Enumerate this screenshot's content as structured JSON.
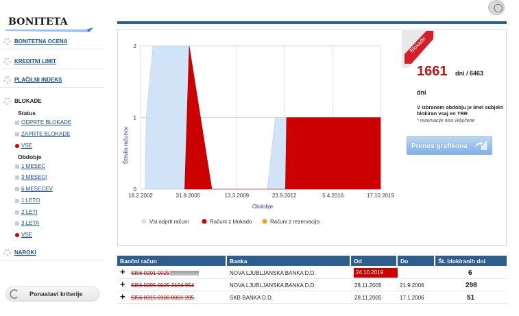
{
  "brand": {
    "title": "BONITETA"
  },
  "top": {
    "help_icon": "lightbulb-icon"
  },
  "sidebar": {
    "items": [
      {
        "label": "BONITETNA OCENA"
      },
      {
        "label": "KREDITNI LIMIT"
      },
      {
        "label": "PLAČILNI INDEKS"
      },
      {
        "label": "BLOKADE"
      },
      {
        "label": "NAROKI"
      }
    ],
    "status_heading": "Status",
    "status_options": [
      {
        "label": "ODPRTE BLOKADE"
      },
      {
        "label": "ZAPRTE BLOKADE"
      },
      {
        "label": "VSE"
      }
    ],
    "period_heading": "Obdobje",
    "period_options": [
      {
        "label": "1 MESEC"
      },
      {
        "label": "3 MESECI"
      },
      {
        "label": "6 MESECEV"
      },
      {
        "label": "1 LETO"
      },
      {
        "label": "2 LETI"
      },
      {
        "label": "3 LETA"
      },
      {
        "label": "VSE"
      }
    ],
    "reset_label": "Ponastavi kriterije"
  },
  "chart_data": {
    "type": "area",
    "xlabel": "Obdobje",
    "ylabel": "Število računov",
    "x_ticks": [
      "18.2.2002",
      "31.8.2005",
      "13.3.2009",
      "23.9.2012",
      "5.4.2016",
      "17.10.2019"
    ],
    "y_ticks": [
      "0",
      "1",
      "2"
    ],
    "ylim": [
      0,
      2
    ],
    "grid": true,
    "legend_position": "bottom",
    "legend": [
      {
        "name": "Vsi odprti računi",
        "color": "#cfe2f7"
      },
      {
        "name": "Računi z blokado",
        "color": "#cc0000"
      },
      {
        "name": "Računi z rezervacijo",
        "color": "#f0a020"
      }
    ],
    "series": [
      {
        "name": "Vsi odprti računi",
        "color": "#cfe2f7",
        "points": [
          [
            "2002-06",
            0
          ],
          [
            "2002-07",
            1
          ],
          [
            "2003-01",
            2
          ],
          [
            "2005-09",
            2
          ],
          [
            "2005-12",
            1
          ],
          [
            "2005-12",
            0
          ],
          [
            "2011-06",
            0
          ],
          [
            "2012-01",
            1
          ],
          [
            "2019-10",
            1
          ]
        ]
      },
      {
        "name": "Računi z blokado",
        "color": "#cc0000",
        "points": [
          [
            "2005-05",
            0
          ],
          [
            "2005-09",
            2
          ],
          [
            "2007-05",
            0
          ],
          [
            "2012-10",
            0
          ],
          [
            "2012-11",
            1
          ],
          [
            "2019-10",
            1
          ]
        ]
      }
    ]
  },
  "stats": {
    "ribbon_label": "Blokade",
    "blocked_days": "1661",
    "suffix": "dni / 6463",
    "dni": "dni",
    "description": "V izbranem obdobju je imel subjekt blokiran vsaj en TRR",
    "note": "* rezervacije niso vključene",
    "transfer_button": "Prenos grafikona"
  },
  "table": {
    "headers": [
      "Bančni račun",
      "Banka",
      "Od",
      "Do",
      "Št. blokiranih dni"
    ],
    "rows": [
      {
        "account": "SI56 0201 0025",
        "bank": "NOVA LJUBLJANSKA BANKA D.D.",
        "from": "24.10.2019",
        "to": "",
        "days": "6"
      },
      {
        "account": "SI56 0295 0025 3194 954",
        "bank": "NOVA LJUBLJANSKA BANKA D.D.",
        "from": "28.11.2005",
        "to": "21.9.2006",
        "days": "298"
      },
      {
        "account": "SI56 0315 0100 0001 205",
        "bank": "SKB BANKA D.D.",
        "from": "28.11.2005",
        "to": "17.1.2006",
        "days": "51"
      }
    ]
  }
}
